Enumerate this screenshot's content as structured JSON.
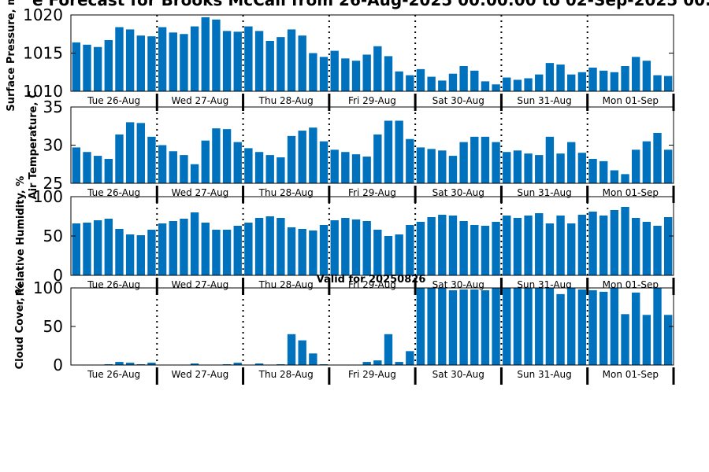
{
  "title": "e Forecast for Brooks McCall from 26-Aug-2025 00:00:00 to 02-Sep-2025 00:",
  "subtitle": "Valid for 20250826",
  "colors": {
    "bar": "#0072BD",
    "axis": "#000000",
    "day_line": "#000000"
  },
  "chart_data": [
    {
      "type": "bar",
      "ylabel": "Surface Pressure, m",
      "ylim": [
        1010,
        1020
      ],
      "yticks": [
        1010,
        1015,
        1020
      ],
      "ytick_labels": [
        "1010",
        "1015",
        "1020"
      ],
      "xtick_labels": [
        "Tue 26-Aug",
        "Wed 27-Aug",
        "Thu 28-Aug",
        "Fri 29-Aug",
        "Sat 30-Aug",
        "Sun 31-Aug",
        "Mon 01-Sep"
      ],
      "bars_per_day": 8,
      "values": [
        1016.4,
        1016.1,
        1015.8,
        1016.7,
        1018.4,
        1018.1,
        1017.3,
        1017.2,
        1018.4,
        1017.7,
        1017.5,
        1018.5,
        1019.7,
        1019.4,
        1017.9,
        1017.8,
        1018.5,
        1017.9,
        1016.6,
        1017.1,
        1018.1,
        1017.3,
        1015.0,
        1014.5,
        1015.3,
        1014.3,
        1014.0,
        1014.8,
        1015.9,
        1014.6,
        1012.6,
        1012.1,
        1012.9,
        1011.9,
        1011.4,
        1012.3,
        1013.3,
        1012.7,
        1011.3,
        1010.9,
        1011.8,
        1011.5,
        1011.7,
        1012.2,
        1013.7,
        1013.5,
        1012.2,
        1012.5,
        1013.1,
        1012.7,
        1012.5,
        1013.3,
        1014.5,
        1014.0,
        1012.1,
        1012.0
      ]
    },
    {
      "type": "bar",
      "ylabel": "Air Temperature, C",
      "ylim": [
        25,
        35
      ],
      "yticks": [
        25,
        30,
        35
      ],
      "ytick_labels": [
        "25",
        "30",
        "35"
      ],
      "xtick_labels": [
        "Tue 26-Aug",
        "Wed 27-Aug",
        "Thu 28-Aug",
        "Fri 29-Aug",
        "Sat 30-Aug",
        "Sun 31-Aug",
        "Mon 01-Sep"
      ],
      "bars_per_day": 8,
      "values": [
        29.7,
        29.1,
        28.6,
        28.2,
        31.4,
        33.0,
        32.9,
        31.1,
        30.0,
        29.2,
        28.7,
        27.5,
        30.6,
        32.2,
        32.1,
        30.4,
        29.6,
        29.1,
        28.7,
        28.4,
        31.2,
        31.9,
        32.3,
        30.5,
        29.4,
        29.1,
        28.8,
        28.5,
        31.4,
        33.2,
        33.2,
        30.8,
        29.7,
        29.5,
        29.3,
        28.6,
        30.4,
        31.1,
        31.1,
        30.4,
        29.1,
        29.3,
        28.9,
        28.7,
        31.1,
        28.9,
        30.4,
        29.0,
        28.2,
        27.9,
        26.7,
        26.2,
        29.4,
        30.5,
        31.6,
        29.4
      ]
    },
    {
      "type": "bar",
      "ylabel": "Relative Humidity, %",
      "ylim": [
        0,
        100
      ],
      "yticks": [
        0,
        50,
        100
      ],
      "ytick_labels": [
        "0",
        "50",
        "100"
      ],
      "xtick_labels": [
        "Tue 26-Aug",
        "Wed 27-Aug",
        "Thu 28-Aug",
        "Fri 29-Aug",
        "Sat 30-Aug",
        "Sun 31-Aug",
        "Mon 01-Sep"
      ],
      "bars_per_day": 8,
      "values": [
        66,
        67,
        70,
        72,
        59,
        52,
        51,
        58,
        66,
        69,
        72,
        80,
        67,
        58,
        58,
        63,
        67,
        73,
        75,
        73,
        61,
        59,
        57,
        64,
        70,
        73,
        71,
        69,
        58,
        50,
        52,
        64,
        68,
        74,
        77,
        76,
        69,
        64,
        63,
        68,
        76,
        73,
        76,
        79,
        66,
        76,
        66,
        77,
        81,
        76,
        83,
        87,
        73,
        68,
        63,
        74
      ]
    },
    {
      "type": "bar",
      "ylabel": "Cloud Cover, %",
      "ylim": [
        0,
        100
      ],
      "yticks": [
        0,
        50,
        100
      ],
      "ytick_labels": [
        "0",
        "50",
        "100"
      ],
      "xtick_labels": [
        "Tue 26-Aug",
        "Wed 27-Aug",
        "Thu 28-Aug",
        "Fri 29-Aug",
        "Sat 30-Aug",
        "Sun 31-Aug",
        "Mon 01-Sep"
      ],
      "bars_per_day": 8,
      "values": [
        0,
        0,
        0,
        1,
        4,
        3,
        1,
        3,
        0,
        0,
        0,
        2,
        0,
        0,
        1,
        3,
        0,
        2,
        0,
        1,
        40,
        32,
        15,
        1,
        0,
        0,
        0,
        4,
        6,
        40,
        4,
        18,
        100,
        100,
        100,
        97,
        98,
        98,
        97,
        100,
        100,
        100,
        100,
        100,
        100,
        92,
        100,
        98,
        97,
        95,
        100,
        66,
        94,
        65,
        100,
        65
      ]
    }
  ]
}
